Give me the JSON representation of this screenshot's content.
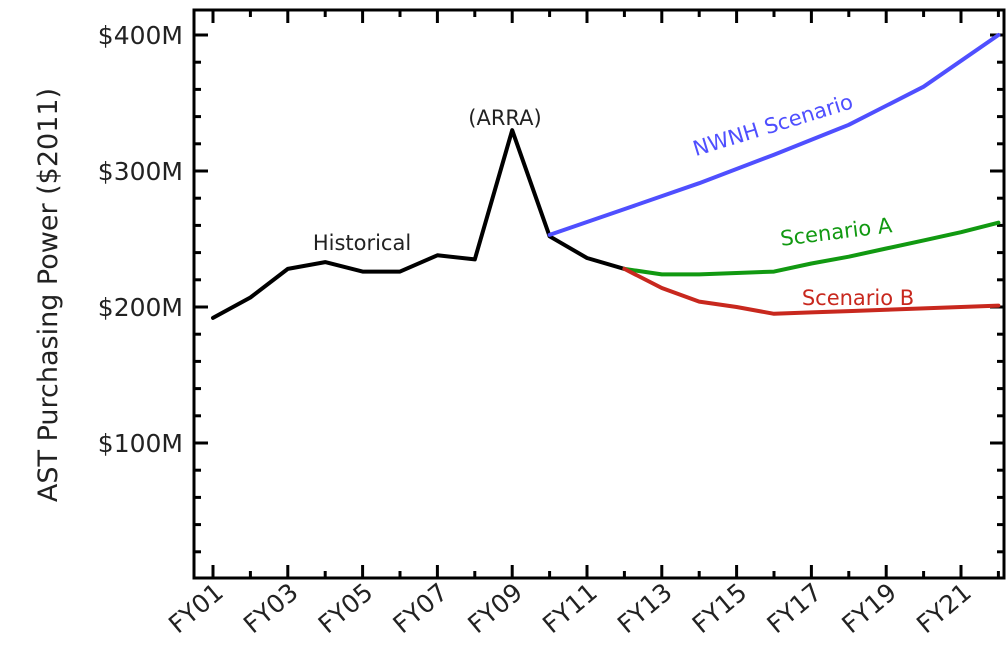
{
  "chart_data": {
    "type": "line",
    "ylabel": "AST Purchasing Power ($2011)",
    "xlabel": "",
    "ylim": [
      0,
      410
    ],
    "y_ticks": [
      {
        "value": 100,
        "label": "$100M"
      },
      {
        "value": 200,
        "label": "$200M"
      },
      {
        "value": 300,
        "label": "$300M"
      },
      {
        "value": 400,
        "label": "$400M"
      }
    ],
    "x_tick_labels": [
      "FY01",
      "FY03",
      "FY05",
      "FY07",
      "FY09",
      "FY11",
      "FY13",
      "FY15",
      "FY17",
      "FY19",
      "FY21"
    ],
    "x_tick_years": [
      2001,
      2003,
      2005,
      2007,
      2009,
      2011,
      2013,
      2015,
      2017,
      2019,
      2021
    ],
    "xlim": [
      2001,
      2022
    ],
    "grid": false,
    "series": [
      {
        "key": "historical",
        "color": "#000000",
        "x": [
          2001,
          2002,
          2003,
          2004,
          2005,
          2006,
          2007,
          2008,
          2009,
          2010,
          2011,
          2012
        ],
        "y": [
          192,
          207,
          228,
          233,
          226,
          226,
          238,
          235,
          330,
          252,
          236,
          228
        ]
      },
      {
        "key": "nwnh",
        "name": "NWNH Scenario",
        "color": "#4f4fff",
        "x": [
          2010,
          2012,
          2014,
          2016,
          2018,
          2020,
          2022
        ],
        "y": [
          253,
          272,
          291,
          312,
          334,
          362,
          400
        ]
      },
      {
        "key": "scenario_a",
        "name": "Scenario A",
        "color": "#119911",
        "x": [
          2012,
          2013,
          2014,
          2015,
          2016,
          2017,
          2018,
          2019,
          2020,
          2021,
          2022
        ],
        "y": [
          228,
          224,
          224,
          225,
          226,
          232,
          237,
          243,
          249,
          255,
          262
        ]
      },
      {
        "key": "scenario_b",
        "name": "Scenario B",
        "color": "#c8281e",
        "x": [
          2012,
          2013,
          2014,
          2015,
          2016,
          2017,
          2018,
          2019,
          2020,
          2021,
          2022
        ],
        "y": [
          228,
          214,
          204,
          200,
          195,
          196,
          197,
          198,
          199,
          200,
          201
        ]
      }
    ],
    "annotations": [
      {
        "key": "historical",
        "text": "Historical",
        "color": "#222222"
      },
      {
        "key": "arra",
        "text": "(ARRA)",
        "color": "#222222"
      },
      {
        "key": "nwnh",
        "text": "NWNH Scenario",
        "color": "#4f4fff"
      },
      {
        "key": "scenario_a",
        "text": "Scenario A",
        "color": "#119911"
      },
      {
        "key": "scenario_b",
        "text": "Scenario B",
        "color": "#c8281e"
      }
    ]
  }
}
